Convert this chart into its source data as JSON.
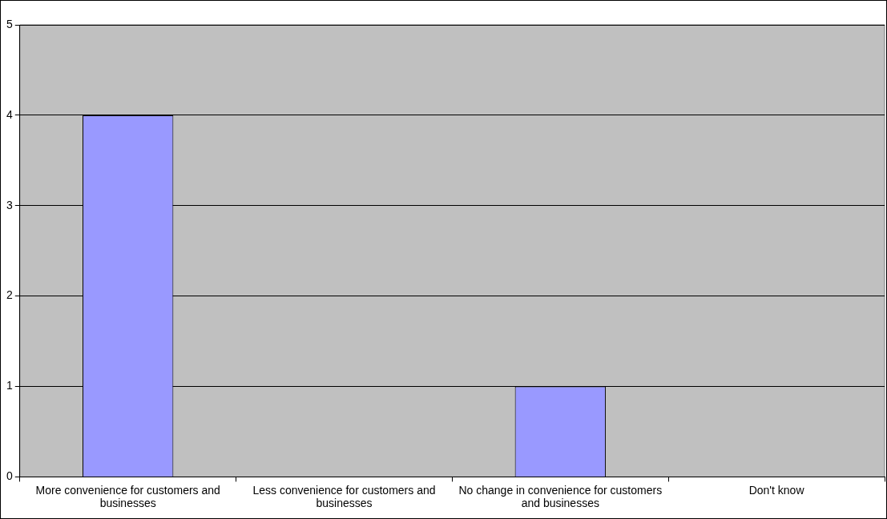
{
  "chart_data": {
    "type": "bar",
    "categories": [
      "More convenience for customers and businesses",
      "Less convenience for customers and businesses",
      "No change in convenience for customers and businesses",
      "Don't know"
    ],
    "values": [
      4,
      0,
      1,
      0
    ],
    "color": "#9999ff",
    "ylim": [
      0,
      5
    ],
    "yticks": [
      0,
      1,
      2,
      3,
      4,
      5
    ],
    "grid": "y",
    "legend": false
  }
}
